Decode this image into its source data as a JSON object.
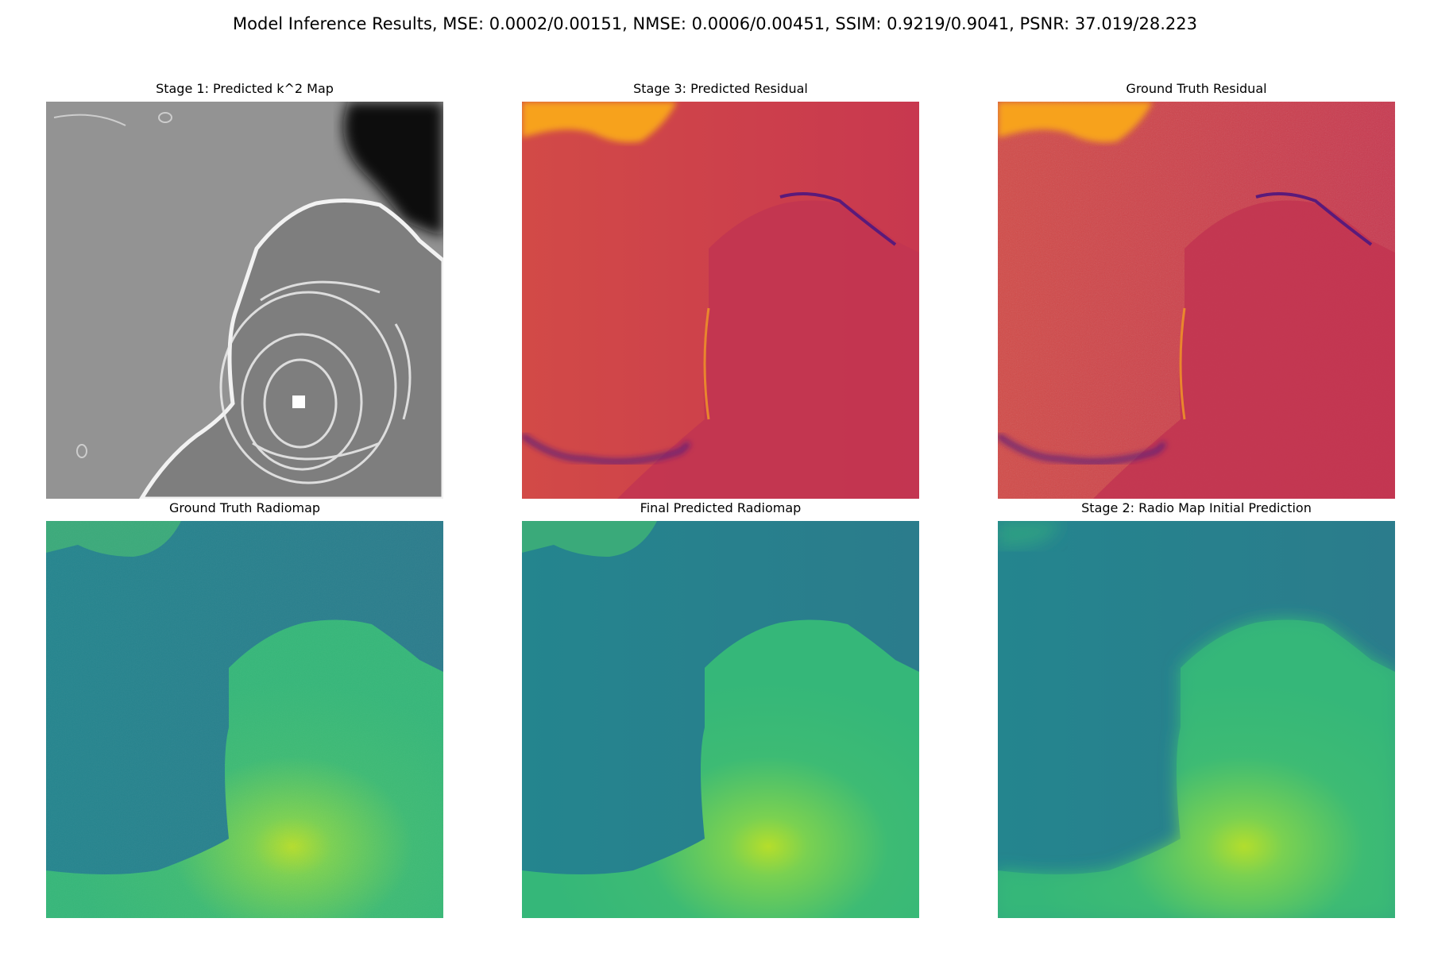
{
  "figure": {
    "suptitle": "Model Inference Results, MSE: 0.0002/0.00151, NMSE: 0.0006/0.00451, SSIM: 0.9219/0.9041, PSNR: 37.019/28.223"
  },
  "panels": [
    {
      "title": "Stage 1: Predicted k^2 Map",
      "colormap": "gray"
    },
    {
      "title": "Stage 3: Predicted Residual",
      "colormap": "inferno"
    },
    {
      "title": "Ground Truth Residual",
      "colormap": "inferno"
    },
    {
      "title": "Ground Truth Radiomap",
      "colormap": "viridis"
    },
    {
      "title": "Final Predicted Radiomap",
      "colormap": "viridis"
    },
    {
      "title": "Stage 2: Radio Map Initial Prediction",
      "colormap": "viridis"
    }
  ],
  "colors": {
    "gray_bg": "#8f8f8f",
    "gray_dark": "#101010",
    "gray_edge": "#f2f2f2",
    "residual_base": "#c8384f",
    "residual_left": "#d24a47",
    "residual_orange": "#f7a21b",
    "residual_dark": "#5a1a7a",
    "radio_dark": "#24858e",
    "radio_darker": "#2b7c8c",
    "radio_green": "#3dbb74",
    "radio_hot": "#b5de2b"
  }
}
